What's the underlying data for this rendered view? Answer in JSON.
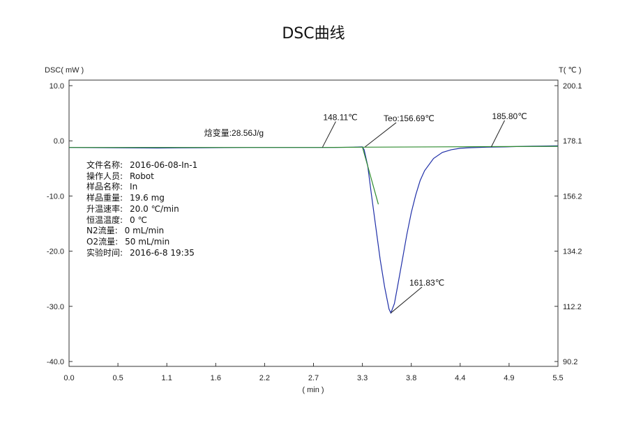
{
  "title": "DSC曲线",
  "chart_data": {
    "type": "line",
    "title": "DSC曲线",
    "xlabel": "( min )",
    "ylabel_left": "DSC( mW )",
    "ylabel_right": "T( ℃ )",
    "xlim": [
      0.0,
      5.5
    ],
    "ylim_left": [
      -40.0,
      10.0
    ],
    "ylim_right": [
      90.2,
      200.1
    ],
    "x_ticks": [
      "0.0",
      "0.5",
      "1.1",
      "1.6",
      "2.2",
      "2.7",
      "3.3",
      "3.8",
      "4.4",
      "4.9",
      "5.5"
    ],
    "y_left_ticks": [
      "10.0",
      "0.0",
      "-10.0",
      "-20.0",
      "-30.0",
      "-40.0"
    ],
    "y_right_ticks": [
      "200.1",
      "178.1",
      "156.2",
      "134.2",
      "112.2",
      "90.2"
    ],
    "grid": false,
    "series": [
      {
        "color": "#1f2fa8",
        "x": [
          0.0,
          0.5,
          1.0,
          1.5,
          2.0,
          2.5,
          2.85,
          3.0,
          3.2,
          3.3,
          3.32,
          3.36,
          3.4,
          3.45,
          3.5,
          3.55,
          3.6,
          3.62,
          3.66,
          3.7,
          3.75,
          3.8,
          3.85,
          3.9,
          3.95,
          4.0,
          4.1,
          4.2,
          4.3,
          4.4,
          4.5,
          4.7,
          4.9,
          5.1,
          5.3,
          5.5
        ],
        "y": [
          -1.2,
          -1.25,
          -1.3,
          -1.25,
          -1.2,
          -1.2,
          -1.2,
          -1.2,
          -1.15,
          -1.1,
          -1.6,
          -4.5,
          -9.5,
          -15.5,
          -21.5,
          -26.5,
          -30.5,
          -31.2,
          -29.5,
          -26.0,
          -21.5,
          -17.0,
          -13.0,
          -9.8,
          -7.2,
          -5.4,
          -3.2,
          -2.1,
          -1.6,
          -1.35,
          -1.25,
          -1.15,
          -1.1,
          -1.0,
          -0.95,
          -0.9
        ]
      },
      {
        "color": "#2e8b2e",
        "x": [
          0.0,
          2.85,
          3.3,
          4.75,
          5.5
        ],
        "y": [
          -1.2,
          -1.2,
          -1.15,
          -1.05,
          -1.0
        ]
      },
      {
        "color": "#2e8b2e",
        "x": [
          3.3,
          3.48
        ],
        "y": [
          -1.1,
          -11.5
        ]
      }
    ],
    "annotations": [
      {
        "text": "焓变量:28.56J/g",
        "x": 1.52,
        "y": 0.9
      },
      {
        "text": "148.11℃",
        "x": 2.85,
        "y": -1.2,
        "tx": 3.0,
        "ty": 3.5
      },
      {
        "text": "Teo:156.69℃",
        "x": 3.33,
        "y": -1.1,
        "tx": 3.68,
        "ty": 3.3
      },
      {
        "text": "185.80℃",
        "x": 4.75,
        "y": -1.1,
        "tx": 4.9,
        "ty": 3.7
      },
      {
        "text": "161.83℃",
        "x": 3.62,
        "y": -31.2,
        "tx": 3.97,
        "ty": -26.5
      }
    ]
  },
  "info_panel": [
    {
      "label": "文件名称:",
      "value": "2016-06-08-In-1"
    },
    {
      "label": "操作人员:",
      "value": "Robot"
    },
    {
      "label": "样品名称:",
      "value": "In"
    },
    {
      "label": "样品重量:",
      "value": "19.6 mg"
    },
    {
      "label": "升温速率:",
      "value": "20.0 ℃/min"
    },
    {
      "label": "恒温温度:",
      "value": "0 ℃"
    },
    {
      "label": "N2流量:",
      "value": "0 mL/min"
    },
    {
      "label": "O2流量:",
      "value": "50 mL/min"
    },
    {
      "label": "实验时间:",
      "value": "2016-6-8 19:35"
    }
  ]
}
